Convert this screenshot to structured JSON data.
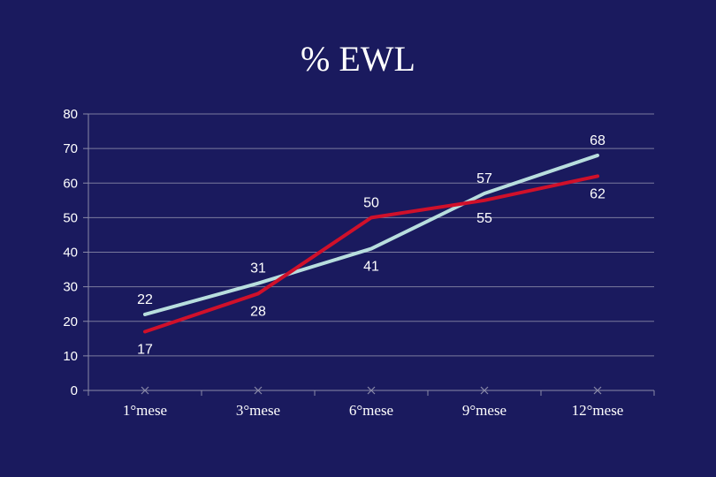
{
  "chart_data": {
    "type": "line",
    "title": "% EWL",
    "categories": [
      "1°mese",
      "3°mese",
      "6°mese",
      "9°mese",
      "12°mese"
    ],
    "yticks": [
      "0",
      "10",
      "20",
      "30",
      "40",
      "50",
      "60",
      "70",
      "80"
    ],
    "ylim": [
      0,
      80
    ],
    "grid": true,
    "legend": "none",
    "series": [
      {
        "values": [
          22,
          31,
          41,
          57,
          68
        ],
        "color": "#b8dede",
        "label_pos": [
          "above",
          "above",
          "below",
          "above",
          "above"
        ]
      },
      {
        "values": [
          17,
          28,
          50,
          55,
          62
        ],
        "color": "#d0102a",
        "label_pos": [
          "below",
          "below",
          "above",
          "below",
          "below"
        ]
      }
    ]
  }
}
